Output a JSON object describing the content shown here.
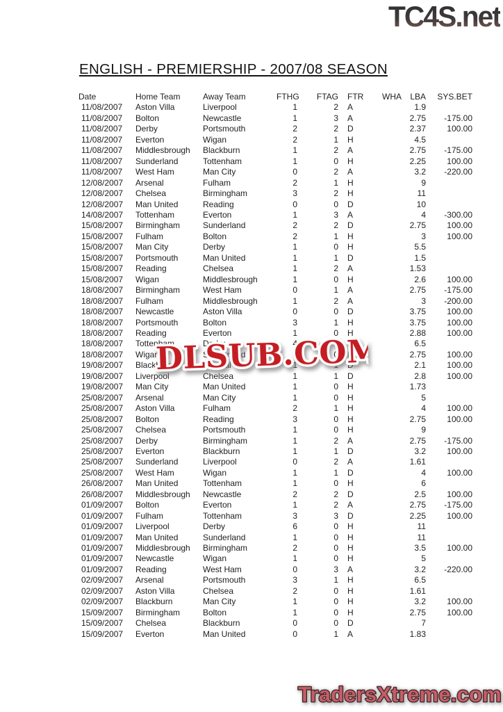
{
  "page": {
    "logo_top": "TC4S.net",
    "title": "ENGLISH - PREMIERSHIP - 2007/08 SEASON",
    "watermark": "DLSUB.COM",
    "logo_bottom": "TradersXtreme.com"
  },
  "colors": {
    "watermark_red": "#c41d23",
    "bottom_logo_pink": "#c75d65",
    "bottom_logo_outline": "#3c2427",
    "top_logo_dark": "#343434",
    "top_logo_maroon": "#8a685e"
  },
  "table": {
    "headers": {
      "date": "Date",
      "home": "Home Team",
      "away": "Away Team",
      "fthg": "FTHG",
      "ftag": "FTAG",
      "ftr": "FTR",
      "wha": "WHA",
      "lba": "LBA",
      "sys": "SYS.BET"
    },
    "rows": [
      {
        "date": "11/08/2007",
        "home": "Aston Villa",
        "away": "Liverpool",
        "fthg": "1",
        "ftag": "2",
        "ftr": "A",
        "wha": "",
        "lba": "1.9",
        "sys": ""
      },
      {
        "date": "11/08/2007",
        "home": "Bolton",
        "away": "Newcastle",
        "fthg": "1",
        "ftag": "3",
        "ftr": "A",
        "wha": "",
        "lba": "2.75",
        "sys": "-175.00"
      },
      {
        "date": "11/08/2007",
        "home": "Derby",
        "away": "Portsmouth",
        "fthg": "2",
        "ftag": "2",
        "ftr": "D",
        "wha": "",
        "lba": "2.37",
        "sys": "100.00"
      },
      {
        "date": "11/08/2007",
        "home": "Everton",
        "away": "Wigan",
        "fthg": "2",
        "ftag": "1",
        "ftr": "H",
        "wha": "",
        "lba": "4.5",
        "sys": ""
      },
      {
        "date": "11/08/2007",
        "home": "Middlesbrough",
        "away": "Blackburn",
        "fthg": "1",
        "ftag": "2",
        "ftr": "A",
        "wha": "",
        "lba": "2.75",
        "sys": "-175.00"
      },
      {
        "date": "11/08/2007",
        "home": "Sunderland",
        "away": "Tottenham",
        "fthg": "1",
        "ftag": "0",
        "ftr": "H",
        "wha": "",
        "lba": "2.25",
        "sys": "100.00"
      },
      {
        "date": "11/08/2007",
        "home": "West Ham",
        "away": "Man City",
        "fthg": "0",
        "ftag": "2",
        "ftr": "A",
        "wha": "",
        "lba": "3.2",
        "sys": "-220.00"
      },
      {
        "date": "12/08/2007",
        "home": "Arsenal",
        "away": "Fulham",
        "fthg": "2",
        "ftag": "1",
        "ftr": "H",
        "wha": "",
        "lba": "9",
        "sys": ""
      },
      {
        "date": "12/08/2007",
        "home": "Chelsea",
        "away": "Birmingham",
        "fthg": "3",
        "ftag": "2",
        "ftr": "H",
        "wha": "",
        "lba": "11",
        "sys": ""
      },
      {
        "date": "12/08/2007",
        "home": "Man United",
        "away": "Reading",
        "fthg": "0",
        "ftag": "0",
        "ftr": "D",
        "wha": "",
        "lba": "10",
        "sys": ""
      },
      {
        "date": "14/08/2007",
        "home": "Tottenham",
        "away": "Everton",
        "fthg": "1",
        "ftag": "3",
        "ftr": "A",
        "wha": "",
        "lba": "4",
        "sys": "-300.00"
      },
      {
        "date": "15/08/2007",
        "home": "Birmingham",
        "away": "Sunderland",
        "fthg": "2",
        "ftag": "2",
        "ftr": "D",
        "wha": "",
        "lba": "2.75",
        "sys": "100.00"
      },
      {
        "date": "15/08/2007",
        "home": "Fulham",
        "away": "Bolton",
        "fthg": "2",
        "ftag": "1",
        "ftr": "H",
        "wha": "",
        "lba": "3",
        "sys": "100.00"
      },
      {
        "date": "15/08/2007",
        "home": "Man City",
        "away": "Derby",
        "fthg": "1",
        "ftag": "0",
        "ftr": "H",
        "wha": "",
        "lba": "5.5",
        "sys": ""
      },
      {
        "date": "15/08/2007",
        "home": "Portsmouth",
        "away": "Man United",
        "fthg": "1",
        "ftag": "1",
        "ftr": "D",
        "wha": "",
        "lba": "1.5",
        "sys": ""
      },
      {
        "date": "15/08/2007",
        "home": "Reading",
        "away": "Chelsea",
        "fthg": "1",
        "ftag": "2",
        "ftr": "A",
        "wha": "",
        "lba": "1.53",
        "sys": ""
      },
      {
        "date": "15/08/2007",
        "home": "Wigan",
        "away": "Middlesbrough",
        "fthg": "1",
        "ftag": "0",
        "ftr": "H",
        "wha": "",
        "lba": "2.6",
        "sys": "100.00"
      },
      {
        "date": "18/08/2007",
        "home": "Birmingham",
        "away": "West Ham",
        "fthg": "0",
        "ftag": "1",
        "ftr": "A",
        "wha": "",
        "lba": "2.75",
        "sys": "-175.00"
      },
      {
        "date": "18/08/2007",
        "home": "Fulham",
        "away": "Middlesbrough",
        "fthg": "1",
        "ftag": "2",
        "ftr": "A",
        "wha": "",
        "lba": "3",
        "sys": "-200.00"
      },
      {
        "date": "18/08/2007",
        "home": "Newcastle",
        "away": "Aston Villa",
        "fthg": "0",
        "ftag": "0",
        "ftr": "D",
        "wha": "",
        "lba": "3.75",
        "sys": "100.00"
      },
      {
        "date": "18/08/2007",
        "home": "Portsmouth",
        "away": "Bolton",
        "fthg": "3",
        "ftag": "1",
        "ftr": "H",
        "wha": "",
        "lba": "3.75",
        "sys": "100.00"
      },
      {
        "date": "18/08/2007",
        "home": "Reading",
        "away": "Everton",
        "fthg": "1",
        "ftag": "0",
        "ftr": "H",
        "wha": "",
        "lba": "2.88",
        "sys": "100.00"
      },
      {
        "date": "18/08/2007",
        "home": "Tottenham",
        "away": "Derby",
        "fthg": "4",
        "ftag": "0",
        "ftr": "H",
        "wha": "",
        "lba": "6.5",
        "sys": ""
      },
      {
        "date": "18/08/2007",
        "home": "Wigan",
        "away": "Sunderland",
        "fthg": "3",
        "ftag": "0",
        "ftr": "H",
        "wha": "",
        "lba": "2.75",
        "sys": "100.00"
      },
      {
        "date": "19/08/2007",
        "home": "Blackburn",
        "away": "Arsenal",
        "fthg": "1",
        "ftag": "1",
        "ftr": "D",
        "wha": "",
        "lba": "2.1",
        "sys": "100.00"
      },
      {
        "date": "19/08/2007",
        "home": "Liverpool",
        "away": "Chelsea",
        "fthg": "1",
        "ftag": "1",
        "ftr": "D",
        "wha": "",
        "lba": "2.8",
        "sys": "100.00"
      },
      {
        "date": "19/08/2007",
        "home": "Man City",
        "away": "Man United",
        "fthg": "1",
        "ftag": "0",
        "ftr": "H",
        "wha": "",
        "lba": "1.73",
        "sys": ""
      },
      {
        "date": "25/08/2007",
        "home": "Arsenal",
        "away": "Man City",
        "fthg": "1",
        "ftag": "0",
        "ftr": "H",
        "wha": "",
        "lba": "5",
        "sys": ""
      },
      {
        "date": "25/08/2007",
        "home": "Aston Villa",
        "away": "Fulham",
        "fthg": "2",
        "ftag": "1",
        "ftr": "H",
        "wha": "",
        "lba": "4",
        "sys": "100.00"
      },
      {
        "date": "25/08/2007",
        "home": "Bolton",
        "away": "Reading",
        "fthg": "3",
        "ftag": "0",
        "ftr": "H",
        "wha": "",
        "lba": "2.75",
        "sys": "100.00"
      },
      {
        "date": "25/08/2007",
        "home": "Chelsea",
        "away": "Portsmouth",
        "fthg": "1",
        "ftag": "0",
        "ftr": "H",
        "wha": "",
        "lba": "9",
        "sys": ""
      },
      {
        "date": "25/08/2007",
        "home": "Derby",
        "away": "Birmingham",
        "fthg": "1",
        "ftag": "2",
        "ftr": "A",
        "wha": "",
        "lba": "2.75",
        "sys": "-175.00"
      },
      {
        "date": "25/08/2007",
        "home": "Everton",
        "away": "Blackburn",
        "fthg": "1",
        "ftag": "1",
        "ftr": "D",
        "wha": "",
        "lba": "3.2",
        "sys": "100.00"
      },
      {
        "date": "25/08/2007",
        "home": "Sunderland",
        "away": "Liverpool",
        "fthg": "0",
        "ftag": "2",
        "ftr": "A",
        "wha": "",
        "lba": "1.61",
        "sys": ""
      },
      {
        "date": "25/08/2007",
        "home": "West Ham",
        "away": "Wigan",
        "fthg": "1",
        "ftag": "1",
        "ftr": "D",
        "wha": "",
        "lba": "4",
        "sys": "100.00"
      },
      {
        "date": "26/08/2007",
        "home": "Man United",
        "away": "Tottenham",
        "fthg": "1",
        "ftag": "0",
        "ftr": "H",
        "wha": "",
        "lba": "6",
        "sys": ""
      },
      {
        "date": "26/08/2007",
        "home": "Middlesbrough",
        "away": "Newcastle",
        "fthg": "2",
        "ftag": "2",
        "ftr": "D",
        "wha": "",
        "lba": "2.5",
        "sys": "100.00"
      },
      {
        "date": "01/09/2007",
        "home": "Bolton",
        "away": "Everton",
        "fthg": "1",
        "ftag": "2",
        "ftr": "A",
        "wha": "",
        "lba": "2.75",
        "sys": "-175.00"
      },
      {
        "date": "01/09/2007",
        "home": "Fulham",
        "away": "Tottenham",
        "fthg": "3",
        "ftag": "3",
        "ftr": "D",
        "wha": "",
        "lba": "2.25",
        "sys": "100.00"
      },
      {
        "date": "01/09/2007",
        "home": "Liverpool",
        "away": "Derby",
        "fthg": "6",
        "ftag": "0",
        "ftr": "H",
        "wha": "",
        "lba": "11",
        "sys": ""
      },
      {
        "date": "01/09/2007",
        "home": "Man United",
        "away": "Sunderland",
        "fthg": "1",
        "ftag": "0",
        "ftr": "H",
        "wha": "",
        "lba": "11",
        "sys": ""
      },
      {
        "date": "01/09/2007",
        "home": "Middlesbrough",
        "away": "Birmingham",
        "fthg": "2",
        "ftag": "0",
        "ftr": "H",
        "wha": "",
        "lba": "3.5",
        "sys": "100.00"
      },
      {
        "date": "01/09/2007",
        "home": "Newcastle",
        "away": "Wigan",
        "fthg": "1",
        "ftag": "0",
        "ftr": "H",
        "wha": "",
        "lba": "5",
        "sys": ""
      },
      {
        "date": "01/09/2007",
        "home": "Reading",
        "away": "West Ham",
        "fthg": "0",
        "ftag": "3",
        "ftr": "A",
        "wha": "",
        "lba": "3.2",
        "sys": "-220.00"
      },
      {
        "date": "02/09/2007",
        "home": "Arsenal",
        "away": "Portsmouth",
        "fthg": "3",
        "ftag": "1",
        "ftr": "H",
        "wha": "",
        "lba": "6.5",
        "sys": ""
      },
      {
        "date": "02/09/2007",
        "home": "Aston Villa",
        "away": "Chelsea",
        "fthg": "2",
        "ftag": "0",
        "ftr": "H",
        "wha": "",
        "lba": "1.61",
        "sys": ""
      },
      {
        "date": "02/09/2007",
        "home": "Blackburn",
        "away": "Man City",
        "fthg": "1",
        "ftag": "0",
        "ftr": "H",
        "wha": "",
        "lba": "3.2",
        "sys": "100.00"
      },
      {
        "date": "15/09/2007",
        "home": "Birmingham",
        "away": "Bolton",
        "fthg": "1",
        "ftag": "0",
        "ftr": "H",
        "wha": "",
        "lba": "2.75",
        "sys": "100.00"
      },
      {
        "date": "15/09/2007",
        "home": "Chelsea",
        "away": "Blackburn",
        "fthg": "0",
        "ftag": "0",
        "ftr": "D",
        "wha": "",
        "lba": "7",
        "sys": ""
      },
      {
        "date": "15/09/2007",
        "home": "Everton",
        "away": "Man United",
        "fthg": "0",
        "ftag": "1",
        "ftr": "A",
        "wha": "",
        "lba": "1.83",
        "sys": ""
      }
    ]
  }
}
